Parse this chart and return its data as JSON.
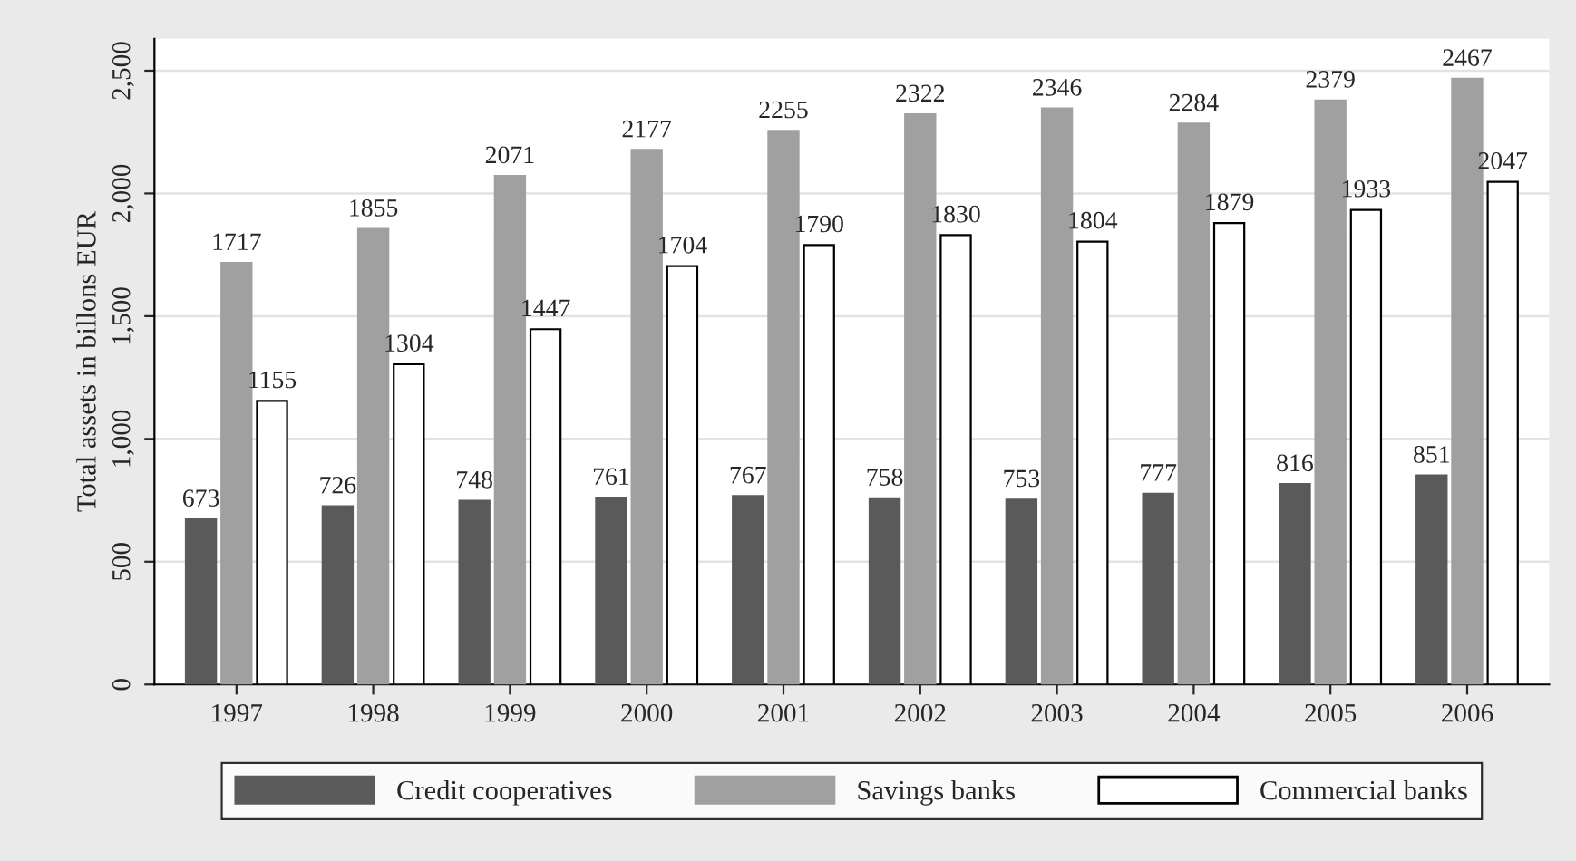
{
  "chart_data": {
    "type": "bar",
    "ylabel": "Total assets in billons EUR",
    "categories": [
      "1997",
      "1998",
      "1999",
      "2000",
      "2001",
      "2002",
      "2003",
      "2004",
      "2005",
      "2006"
    ],
    "series": [
      {
        "name": "Credit cooperatives",
        "color": "#5a5a5a",
        "values": [
          673,
          726,
          748,
          761,
          767,
          758,
          753,
          777,
          816,
          851
        ]
      },
      {
        "name": "Savings banks",
        "color": "#a0a0a0",
        "values": [
          1717,
          1855,
          2071,
          2177,
          2255,
          2322,
          2346,
          2284,
          2379,
          2467
        ]
      },
      {
        "name": "Commercial banks",
        "color": "#ffffff",
        "values": [
          1155,
          1304,
          1447,
          1704,
          1790,
          1830,
          1804,
          1879,
          1933,
          2047
        ]
      }
    ],
    "ylim": [
      0,
      2630
    ],
    "yticks": [
      0,
      500,
      {
        "value": 1000,
        "label": "1,000"
      },
      {
        "value": 1500,
        "label": "1,500"
      },
      {
        "value": 2000,
        "label": "2,000"
      },
      {
        "value": 2500,
        "label": "2,500"
      }
    ],
    "grid": "y",
    "data_labels": true,
    "legend": "bottom"
  }
}
